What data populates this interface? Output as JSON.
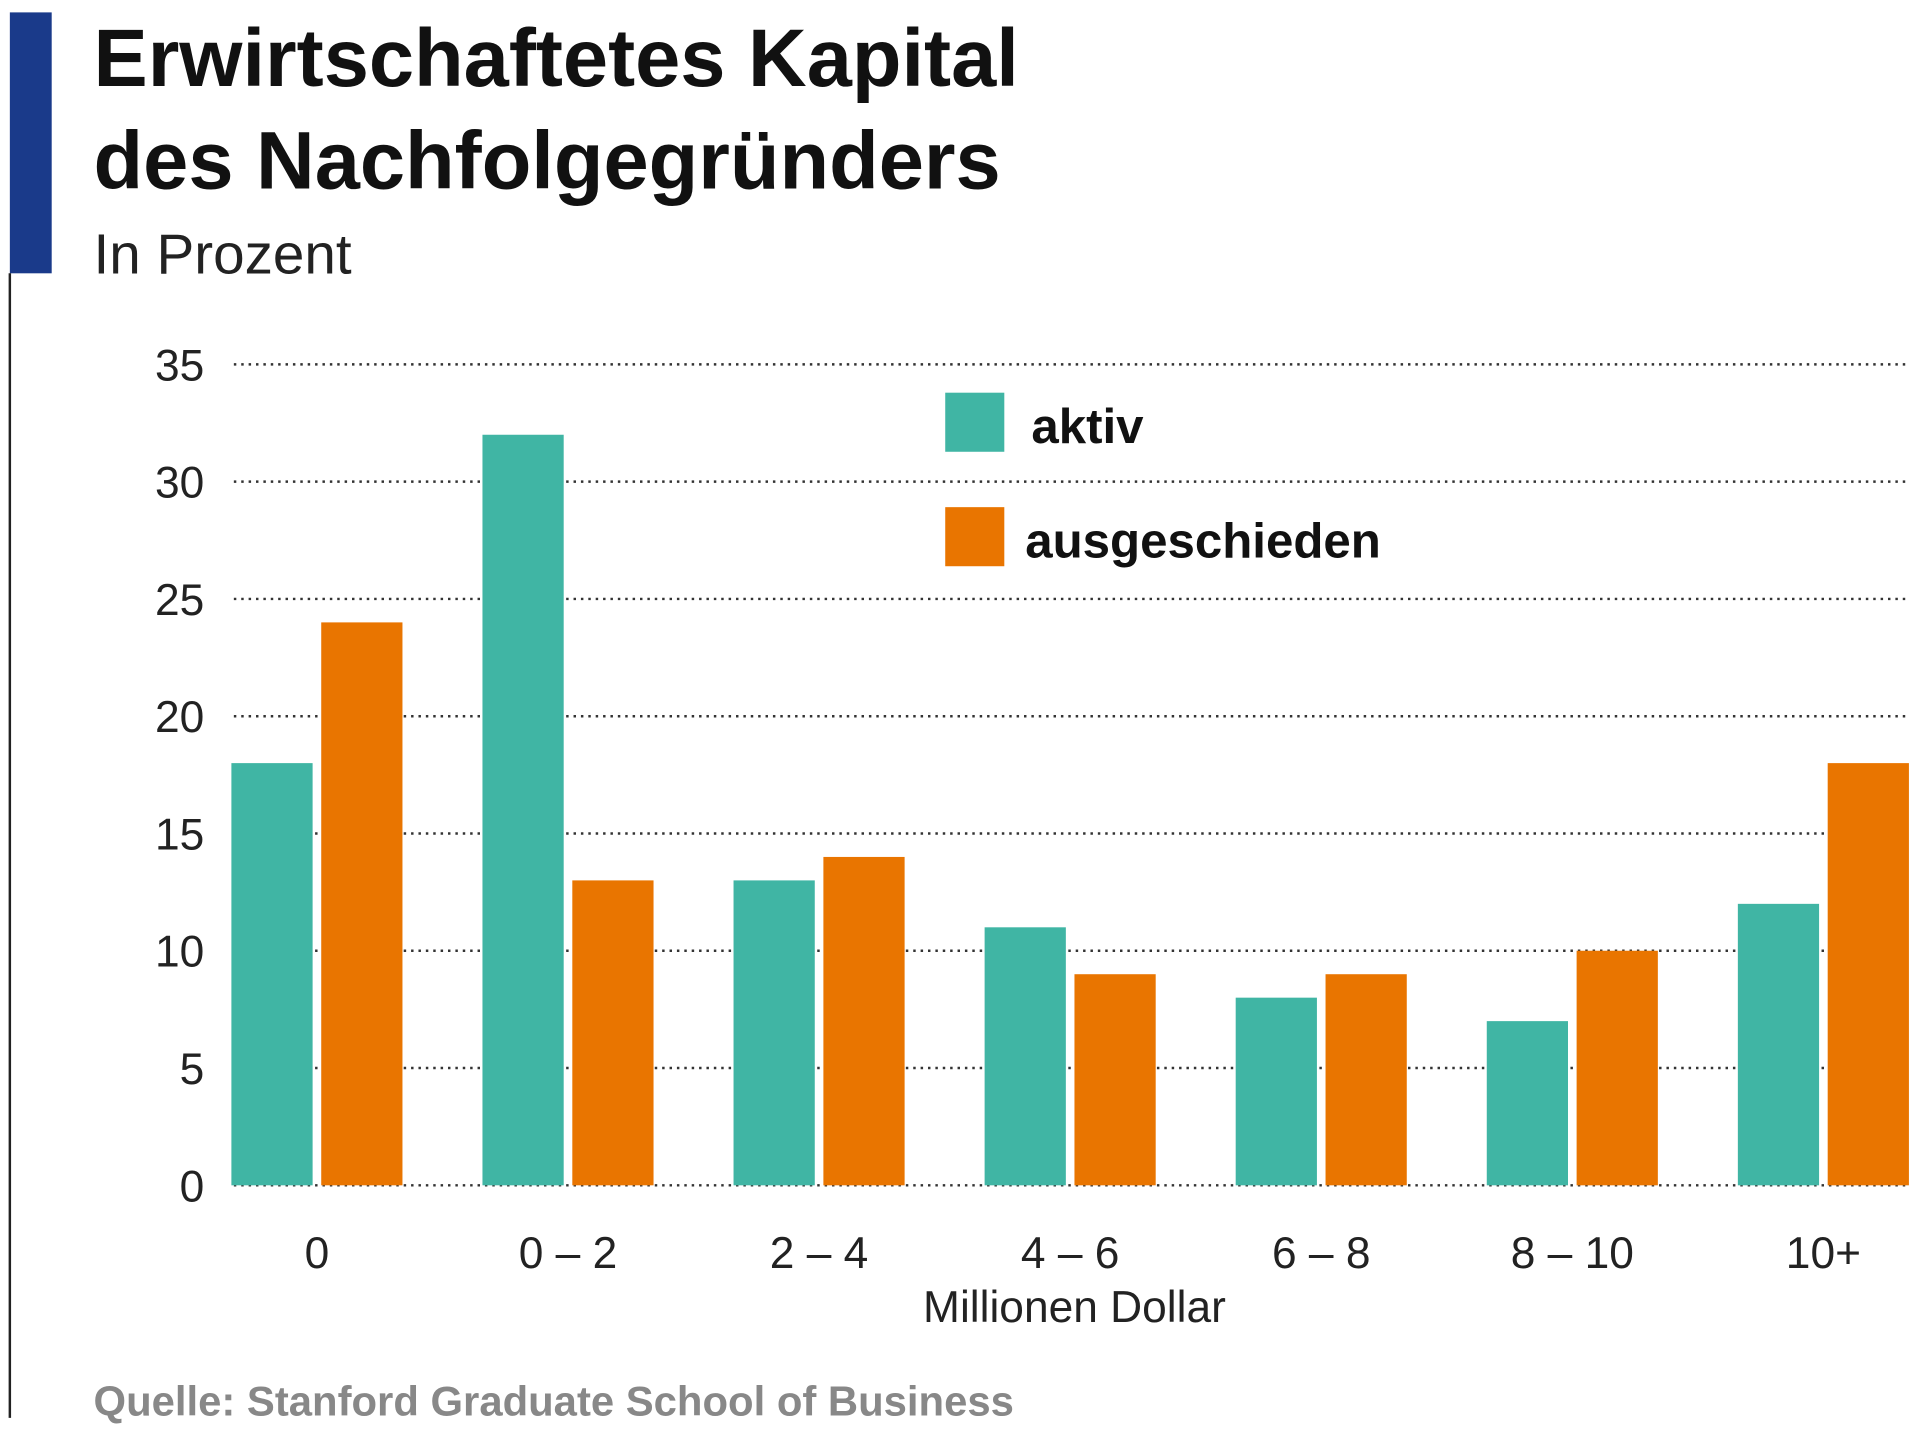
{
  "chart_data": {
    "type": "bar",
    "title": "Erwirtschaftetes Kapital des Nachfolgegründers",
    "title_lines": [
      "Erwirtschaftetes Kapital",
      "des Nachfolgegründers"
    ],
    "subtitle": "In Prozent",
    "xlabel": "Millionen Dollar",
    "ylabel": "",
    "ylim": [
      0,
      35
    ],
    "yticks": [
      "0",
      "5",
      "10",
      "15",
      "20",
      "25",
      "30",
      "35"
    ],
    "grid": true,
    "legend_position": "top-center",
    "categories": [
      "0",
      "0 – 2",
      "2 – 4",
      "4 – 6",
      "6 – 8",
      "8 – 10",
      "10+"
    ],
    "series": [
      {
        "name": "aktiv",
        "color": "#40b5a4",
        "values": [
          18,
          32,
          13,
          11,
          8,
          7,
          12
        ]
      },
      {
        "name": "ausgeschieden",
        "color": "#e97500",
        "values": [
          24,
          13,
          14,
          9,
          9,
          10,
          18
        ]
      }
    ],
    "source": "Quelle: Stanford Graduate School of Business",
    "accent_color": "#1a3a8a"
  }
}
